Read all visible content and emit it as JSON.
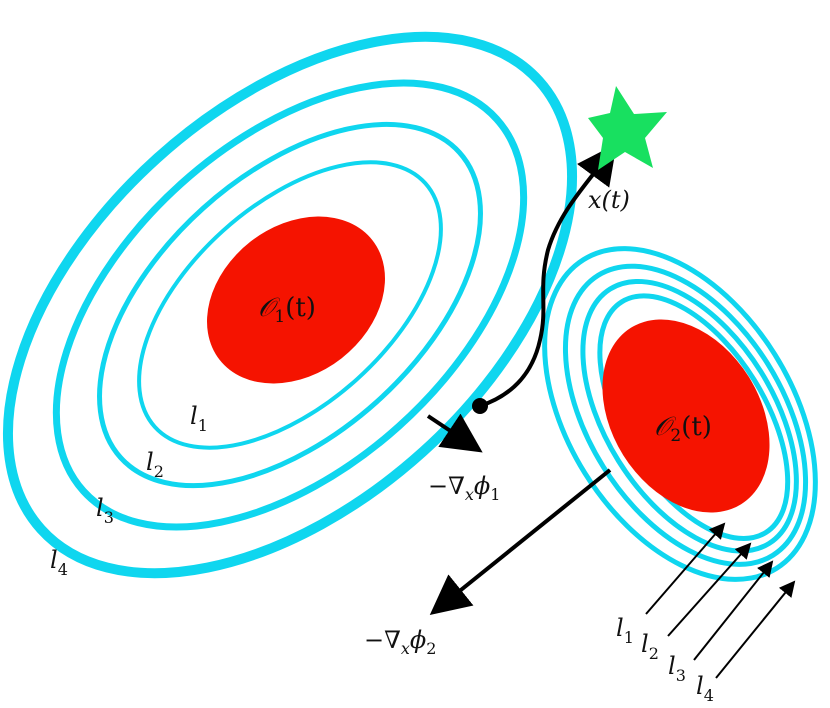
{
  "colors": {
    "level_set": "#0fd6ef",
    "obstacle": "#f51300",
    "goal": "#18e060",
    "ink": "#000000"
  },
  "obstacle1": {
    "label_main": "𝒪",
    "label_sub": "1",
    "label_arg": "(t)",
    "level_labels": [
      {
        "main": "l",
        "sub": "1"
      },
      {
        "main": "l",
        "sub": "2"
      },
      {
        "main": "l",
        "sub": "3"
      },
      {
        "main": "l",
        "sub": "4"
      }
    ]
  },
  "obstacle2": {
    "label_main": "𝒪",
    "label_sub": "2",
    "label_arg": "(t)",
    "level_labels": [
      {
        "main": "l",
        "sub": "1"
      },
      {
        "main": "l",
        "sub": "2"
      },
      {
        "main": "l",
        "sub": "3"
      },
      {
        "main": "l",
        "sub": "4"
      }
    ]
  },
  "trajectory": {
    "label": "x(t)"
  },
  "gradients": [
    {
      "prefix": "−∇",
      "sub": "x",
      "symbol": "ϕ",
      "index": "1"
    },
    {
      "prefix": "−∇",
      "sub": "x",
      "symbol": "ϕ",
      "index": "2"
    }
  ],
  "icons": {
    "goal": "star-icon",
    "start": "dot-icon"
  }
}
